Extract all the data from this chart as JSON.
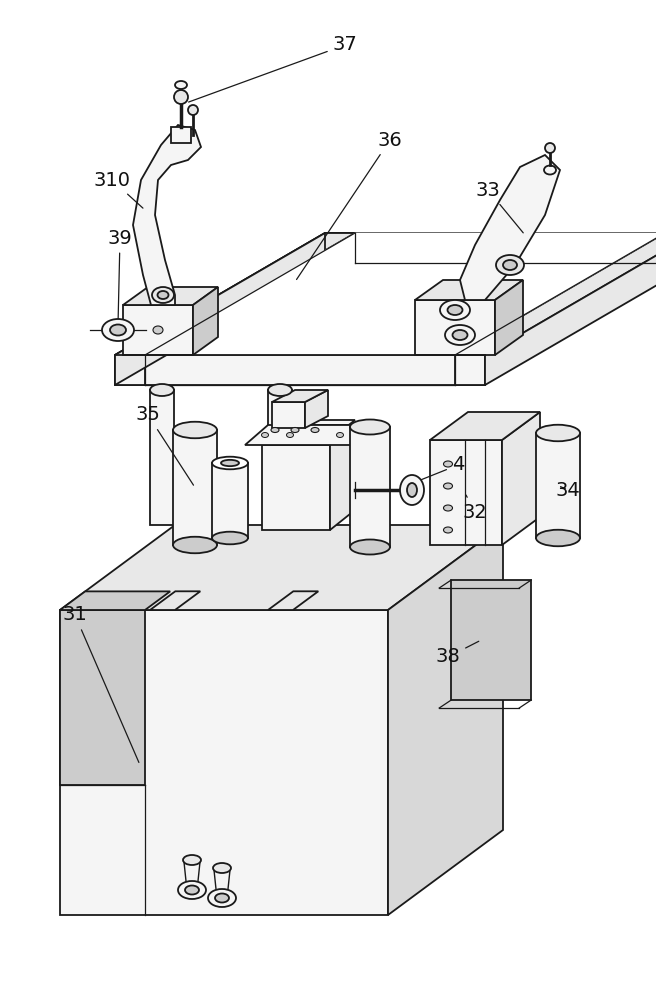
{
  "background_color": "#ffffff",
  "line_color": "#1a1a1a",
  "label_color": "#111111",
  "label_fontsize": 14,
  "fig_width": 6.56,
  "fig_height": 10.0,
  "light_fill": "#f5f5f5",
  "mid_fill": "#e8e8e8",
  "dark_fill": "#d8d8d8",
  "shade_fill": "#cccccc"
}
